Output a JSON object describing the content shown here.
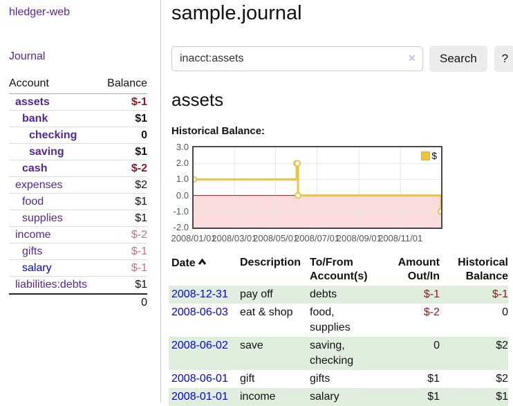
{
  "sidebar": {
    "brand": "hledger-web",
    "nav": [
      {
        "label": "Journal"
      }
    ],
    "accounts_table": {
      "account_header": "Account",
      "balance_header": "Balance",
      "accounts": [
        {
          "name": "assets",
          "balance": "$-1",
          "cls": "depth-1 matched",
          "bal_cls": "negative"
        },
        {
          "name": "bank",
          "balance": "$1",
          "cls": "depth-2 matched",
          "bal_cls": ""
        },
        {
          "name": "checking",
          "balance": "0",
          "cls": "depth-3 matched",
          "bal_cls": ""
        },
        {
          "name": "saving",
          "balance": "$1",
          "cls": "depth-3 matched",
          "bal_cls": ""
        },
        {
          "name": "cash",
          "balance": "$-2",
          "cls": "depth-2 matched",
          "bal_cls": "negative"
        },
        {
          "name": "expenses",
          "balance": "$2",
          "cls": "depth-1",
          "bal_cls": ""
        },
        {
          "name": "food",
          "balance": "$1",
          "cls": "depth-2",
          "bal_cls": ""
        },
        {
          "name": "supplies",
          "balance": "$1",
          "cls": "depth-2",
          "bal_cls": ""
        },
        {
          "name": "income",
          "balance": "$-2",
          "cls": "depth-1",
          "bal_cls": "negative-dim"
        },
        {
          "name": "gifts",
          "balance": "$-1",
          "cls": "depth-2",
          "bal_cls": "negative-dim"
        },
        {
          "name": "salary",
          "balance": "$-1",
          "cls": "depth-2",
          "name_cls": "unvisited",
          "bal_cls": "negative-dim"
        },
        {
          "name": "liabilities:debts",
          "balance": "$1",
          "cls": "depth-1",
          "bal_cls": ""
        }
      ],
      "total": "0"
    }
  },
  "header": {
    "title": "sample.journal"
  },
  "search": {
    "value": "inacct:assets",
    "clear_icon": "×",
    "button_label": "Search",
    "help_label": "?"
  },
  "account_page": {
    "heading": "assets",
    "chart_title": "Historical Balance:"
  },
  "chart_data": {
    "type": "line",
    "step": "after",
    "title": "Historical Balance:",
    "x_range": [
      "2008-01-01",
      "2008-12-31"
    ],
    "ylim": [
      -2,
      3
    ],
    "y_ticks": [
      "3.0",
      "2.0",
      "1.0",
      "0.0",
      "-1.0",
      "-2.0"
    ],
    "x_ticks": [
      "2008/01/01",
      "2008/03/01",
      "2008/05/01",
      "2008/07/01",
      "2008/09/01",
      "2008/11/01"
    ],
    "series": [
      {
        "name": "$",
        "color": "#edc240",
        "points": [
          [
            "2008-01-01",
            1
          ],
          [
            "2008-06-01",
            2
          ],
          [
            "2008-06-02",
            2
          ],
          [
            "2008-06-03",
            0
          ],
          [
            "2008-12-31",
            -1
          ]
        ]
      }
    ],
    "legend_position": "top-right",
    "grid": true,
    "grid_color": "#e7e7e7",
    "negative_region_color": "#fadcdc",
    "zero_line_color": "#8b1a1a"
  },
  "register": {
    "columns": [
      {
        "label": "Date",
        "sorted": "ascending"
      },
      {
        "label": "Description"
      },
      {
        "label": "To/From Account(s)"
      },
      {
        "label": "Amount Out/In"
      },
      {
        "label": "Historical Balance"
      }
    ],
    "rows": [
      {
        "date": "2008-12-31",
        "description": "pay off",
        "accounts": "debts",
        "amount": "$-1",
        "balance": "$-1",
        "cls": "shaded",
        "amount_cls": "neg",
        "balance_cls": "neg"
      },
      {
        "date": "2008-06-03",
        "description": "eat & shop",
        "accounts": "food, supplies",
        "amount": "$-2",
        "balance": "0",
        "cls": "",
        "amount_cls": "neg",
        "balance_cls": ""
      },
      {
        "date": "2008-06-02",
        "description": "save",
        "accounts": "saving, checking",
        "amount": "0",
        "balance": "$2",
        "cls": "shaded",
        "amount_cls": "",
        "balance_cls": ""
      },
      {
        "date": "2008-06-01",
        "description": "gift",
        "accounts": "gifts",
        "amount": "$1",
        "balance": "$2",
        "cls": "",
        "amount_cls": "",
        "balance_cls": ""
      },
      {
        "date": "2008-01-01",
        "description": "income",
        "accounts": "salary",
        "amount": "$1",
        "balance": "$1",
        "cls": "shaded",
        "amount_cls": "",
        "balance_cls": ""
      }
    ]
  },
  "colors": {
    "link_purple": "#55269c",
    "link_blue": "#0000ee",
    "negative_dark": "#8b1919",
    "negative_dim": "#c4747e",
    "shaded_row_green": "#dfeedd",
    "chart_line_gold": "#edc240",
    "chart_negative_pink": "#fadcdc",
    "chart_zero_line": "#8b1a1a"
  }
}
